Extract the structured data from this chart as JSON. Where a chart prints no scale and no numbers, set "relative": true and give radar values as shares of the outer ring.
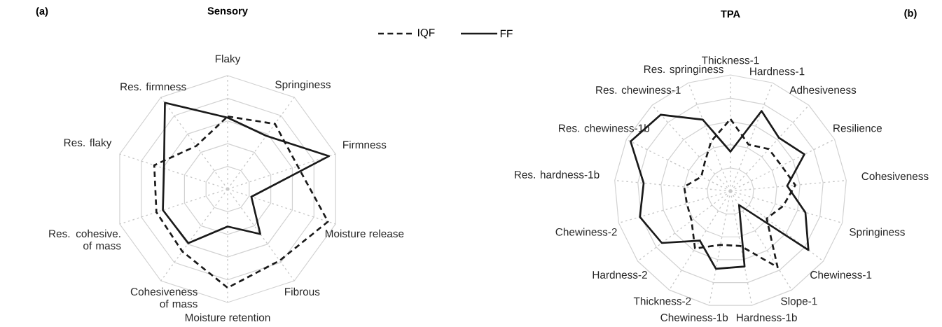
{
  "chart_data": [
    {
      "type": "radar",
      "title": "Sensory",
      "annotations": [
        "(a)"
      ],
      "relative": true,
      "grid": true,
      "legend": "top right",
      "categories": [
        "Flaky",
        "Springiness",
        "Firmness",
        "Moisture release",
        "Fibrous",
        "Moisture retention",
        "Cohesiveness of mass",
        "Res. cohesive. of mass",
        "Res. flaky",
        "Res. firmness"
      ],
      "series": [
        {
          "name": "IQF",
          "color": "#1a1a1a",
          "line_style": "dashed",
          "values": [
            0.64,
            0.71,
            0.65,
            0.93,
            0.78,
            0.87,
            0.68,
            0.66,
            0.68,
            0.47
          ]
        },
        {
          "name": "FF",
          "color": "#1a1a1a",
          "line_style": "solid",
          "values": [
            0.63,
            0.58,
            0.94,
            0.22,
            0.49,
            0.33,
            0.59,
            0.6,
            0.59,
            0.94
          ]
        }
      ]
    },
    {
      "type": "radar",
      "title": "TPA",
      "annotations": [
        "(b)"
      ],
      "relative": true,
      "grid": true,
      "categories": [
        "Thickness-1",
        "Hardness-1",
        "Adhesiveness",
        "Resilience",
        "Cohesiveness",
        "Springiness",
        "Chewiness-1",
        "Slope-1",
        "Hardness-1b",
        "Chewiness-1b",
        "Thickness-2",
        "Hardness-2",
        "Chewiness-2",
        "Res. hardness-1b",
        "Res. chewiness-1b",
        "Res. chewiness-1",
        "Res. springiness"
      ],
      "series": [
        {
          "color": "#1a1a1a",
          "line_style": "dashed",
          "values": [
            0.62,
            0.43,
            0.49,
            0.49,
            0.56,
            0.47,
            0.39,
            0.77,
            0.48,
            0.47,
            0.58,
            0.42,
            0.39,
            0.4,
            0.28,
            0.33,
            0.46
          ]
        },
        {
          "color": "#1a1a1a",
          "line_style": "solid",
          "values": [
            0.34,
            0.74,
            0.62,
            0.71,
            0.49,
            0.67,
            0.84,
            0.14,
            0.66,
            0.68,
            0.5,
            0.74,
            0.81,
            0.75,
            0.96,
            0.89,
            0.66
          ]
        }
      ]
    }
  ]
}
